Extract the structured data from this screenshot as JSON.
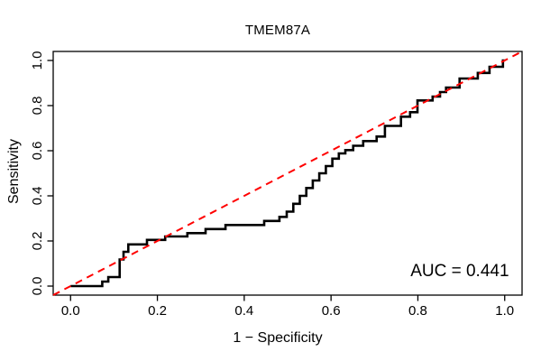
{
  "figure": {
    "title": "TMEM87A",
    "x_axis_label": "1 − Specificity",
    "y_axis_label": "Sensitivity",
    "auc_label": "AUC = 0.441"
  },
  "colors": {
    "background": "#FFFFFF",
    "axis": "#000000",
    "roc_curve": "#000000",
    "reference_line": "#FF0000",
    "text": "#000000"
  },
  "chart_data": {
    "type": "line",
    "subtype": "roc-curve",
    "title": "TMEM87A",
    "xlabel": "1 − Specificity",
    "ylabel": "Sensitivity",
    "xlim": [
      -0.04,
      1.04
    ],
    "ylim": [
      -0.04,
      1.04
    ],
    "grid": false,
    "legend": "none",
    "x_ticks": [
      0.0,
      0.2,
      0.4,
      0.6,
      0.8,
      1.0
    ],
    "x_tick_labels": [
      "0.0",
      "0.2",
      "0.4",
      "0.6",
      "0.8",
      "1.0"
    ],
    "y_ticks": [
      0.0,
      0.2,
      0.4,
      0.6,
      0.8,
      1.0
    ],
    "y_tick_labels": [
      "0.0",
      "0.2",
      "0.4",
      "0.6",
      "0.8",
      "1.0"
    ],
    "auc": 0.441,
    "annotations": [
      {
        "text": "AUC = 0.441",
        "x": 1.01,
        "y": 0.044,
        "anchor": "end"
      }
    ],
    "series": [
      {
        "name": "roc-curve",
        "color": "#000000",
        "width": 2.6,
        "dash": null,
        "points": [
          [
            0.0,
            0.0
          ],
          [
            0.073,
            0.0
          ],
          [
            0.073,
            0.02
          ],
          [
            0.087,
            0.02
          ],
          [
            0.087,
            0.04
          ],
          [
            0.113,
            0.04
          ],
          [
            0.113,
            0.118
          ],
          [
            0.122,
            0.118
          ],
          [
            0.122,
            0.152
          ],
          [
            0.133,
            0.152
          ],
          [
            0.133,
            0.185
          ],
          [
            0.176,
            0.185
          ],
          [
            0.176,
            0.205
          ],
          [
            0.218,
            0.205
          ],
          [
            0.218,
            0.22
          ],
          [
            0.269,
            0.22
          ],
          [
            0.269,
            0.235
          ],
          [
            0.311,
            0.235
          ],
          [
            0.311,
            0.253
          ],
          [
            0.357,
            0.253
          ],
          [
            0.357,
            0.271
          ],
          [
            0.446,
            0.271
          ],
          [
            0.446,
            0.289
          ],
          [
            0.481,
            0.289
          ],
          [
            0.481,
            0.307
          ],
          [
            0.498,
            0.307
          ],
          [
            0.498,
            0.33
          ],
          [
            0.513,
            0.33
          ],
          [
            0.513,
            0.365
          ],
          [
            0.528,
            0.365
          ],
          [
            0.528,
            0.4
          ],
          [
            0.543,
            0.4
          ],
          [
            0.543,
            0.435
          ],
          [
            0.558,
            0.435
          ],
          [
            0.558,
            0.468
          ],
          [
            0.573,
            0.468
          ],
          [
            0.573,
            0.5
          ],
          [
            0.588,
            0.5
          ],
          [
            0.588,
            0.532
          ],
          [
            0.603,
            0.532
          ],
          [
            0.603,
            0.565
          ],
          [
            0.618,
            0.565
          ],
          [
            0.618,
            0.588
          ],
          [
            0.633,
            0.588
          ],
          [
            0.633,
            0.603
          ],
          [
            0.651,
            0.603
          ],
          [
            0.651,
            0.622
          ],
          [
            0.674,
            0.622
          ],
          [
            0.674,
            0.643
          ],
          [
            0.705,
            0.643
          ],
          [
            0.705,
            0.663
          ],
          [
            0.724,
            0.663
          ],
          [
            0.724,
            0.71
          ],
          [
            0.761,
            0.71
          ],
          [
            0.761,
            0.751
          ],
          [
            0.782,
            0.751
          ],
          [
            0.782,
            0.771
          ],
          [
            0.799,
            0.771
          ],
          [
            0.799,
            0.823
          ],
          [
            0.834,
            0.823
          ],
          [
            0.834,
            0.84
          ],
          [
            0.851,
            0.84
          ],
          [
            0.851,
            0.86
          ],
          [
            0.865,
            0.86
          ],
          [
            0.865,
            0.88
          ],
          [
            0.896,
            0.88
          ],
          [
            0.896,
            0.92
          ],
          [
            0.938,
            0.92
          ],
          [
            0.938,
            0.945
          ],
          [
            0.965,
            0.945
          ],
          [
            0.965,
            0.972
          ],
          [
            0.996,
            0.972
          ],
          [
            0.996,
            1.0
          ],
          [
            1.0,
            1.0
          ]
        ]
      },
      {
        "name": "chance-diagonal",
        "color": "#FF0000",
        "width": 2,
        "dash": [
          8,
          6
        ],
        "points": [
          [
            -0.04,
            -0.04
          ],
          [
            1.04,
            1.04
          ]
        ]
      }
    ]
  }
}
